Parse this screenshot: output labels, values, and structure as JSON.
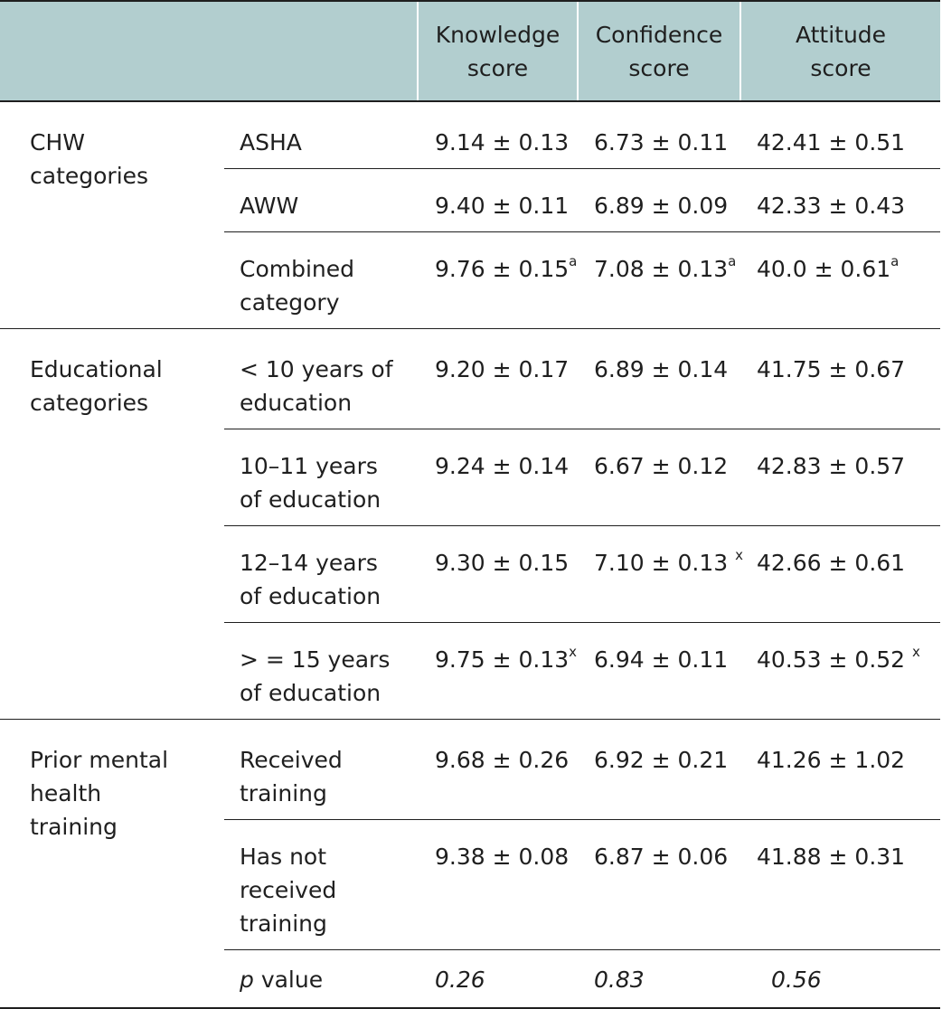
{
  "table": {
    "headers": {
      "col1": "",
      "col2": "",
      "knowledge_line1": "Knowledge",
      "knowledge_line2": "score",
      "confidence_line1": "Confidence",
      "confidence_line2": "score",
      "attitude_line1": "Attitude",
      "attitude_line2": "score"
    },
    "groups": [
      {
        "label_lines": [
          "CHW",
          "categories"
        ],
        "rows": [
          {
            "label_lines": [
              "ASHA"
            ],
            "knowledge": "9.14 ± 0.13",
            "knowledge_sup": "",
            "confidence": "6.73 ± 0.11",
            "confidence_sup": "",
            "attitude": "42.41 ± 0.51",
            "attitude_sup": ""
          },
          {
            "label_lines": [
              "AWW"
            ],
            "knowledge": "9.40 ± 0.11",
            "knowledge_sup": "",
            "confidence": "6.89 ± 0.09",
            "confidence_sup": "",
            "attitude": "42.33 ± 0.43",
            "attitude_sup": ""
          },
          {
            "label_lines": [
              "Combined",
              "category"
            ],
            "knowledge": "9.76 ± 0.15",
            "knowledge_sup": "a",
            "confidence": "7.08 ± 0.13",
            "confidence_sup": "a",
            "attitude": "40.0 ± 0.61",
            "attitude_sup": "a"
          }
        ]
      },
      {
        "label_lines": [
          "Educational",
          "categories"
        ],
        "rows": [
          {
            "label_lines": [
              "< 10 years of",
              "education"
            ],
            "knowledge": "9.20 ± 0.17",
            "knowledge_sup": "",
            "confidence": "6.89 ± 0.14",
            "confidence_sup": "",
            "attitude": "41.75 ± 0.67",
            "attitude_sup": ""
          },
          {
            "label_lines": [
              "10–11 years",
              "of education"
            ],
            "knowledge": "9.24 ± 0.14",
            "knowledge_sup": "",
            "confidence": "6.67 ± 0.12",
            "confidence_sup": "",
            "attitude": "42.83 ± 0.57",
            "attitude_sup": ""
          },
          {
            "label_lines": [
              "12–14 years",
              "of education"
            ],
            "knowledge": "9.30 ± 0.15",
            "knowledge_sup": "",
            "confidence": "7.10 ± 0.13 ",
            "confidence_sup": "x",
            "attitude": "42.66 ± 0.61",
            "attitude_sup": ""
          },
          {
            "label_lines": [
              "> = 15 years",
              "of education"
            ],
            "knowledge": "9.75 ± 0.13",
            "knowledge_sup": "x",
            "confidence": "6.94 ± 0.11",
            "confidence_sup": "",
            "attitude": "40.53 ± 0.52 ",
            "attitude_sup": "x"
          }
        ]
      },
      {
        "label_lines": [
          "Prior mental",
          "health",
          "training"
        ],
        "rows": [
          {
            "label_lines": [
              "Received",
              "training"
            ],
            "knowledge": "9.68 ± 0.26",
            "knowledge_sup": "",
            "confidence": "6.92 ± 0.21",
            "confidence_sup": "",
            "attitude": "41.26 ± 1.02",
            "attitude_sup": ""
          },
          {
            "label_lines": [
              "Has not",
              "received",
              "training"
            ],
            "knowledge": "9.38 ± 0.08",
            "knowledge_sup": "",
            "confidence": "6.87 ± 0.06",
            "confidence_sup": "",
            "attitude": "41.88 ± 0.31",
            "attitude_sup": ""
          }
        ]
      }
    ],
    "pvalue_row": {
      "label_italic": "p",
      "label_rest": " value",
      "knowledge": "0.26",
      "confidence": "0.83",
      "attitude": "0.56"
    }
  }
}
